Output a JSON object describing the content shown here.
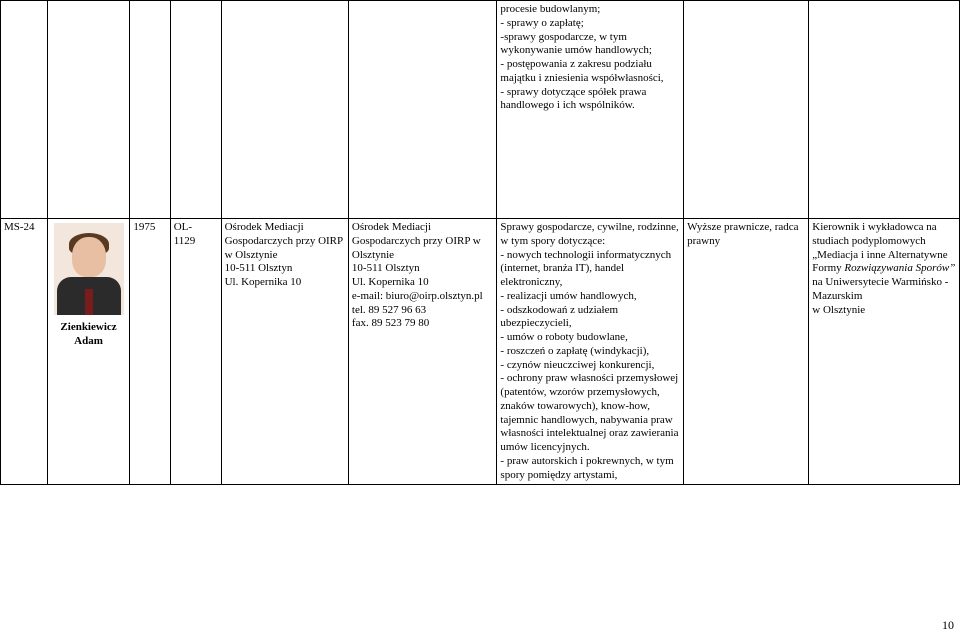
{
  "page_number": "10",
  "row_top": {
    "desc": "procesie budowlanym;\n- sprawy o zapłatę;\n-sprawy gospodarcze, w tym wykonywanie umów handlowych;\n- postępowania z zakresu podziału majątku i zniesienia współwłasności,\n- sprawy dotyczące spółek prawa handlowego i ich wspólników."
  },
  "row_main": {
    "id": "MS-24",
    "surname": "Zienkiewicz",
    "firstname": "Adam",
    "year": "1975",
    "num_prefix": "OL-",
    "num": "1129",
    "org": "Ośrodek Mediacji Gospodarczych przy OIRP w Olsztynie\n10-511 Olsztyn\nUl. Kopernika 10",
    "addr": "Ośrodek Mediacji Gospodarczych przy OIRP w Olsztynie\n10-511 Olsztyn\nUl. Kopernika 10\ne-mail: biuro@oirp.olsztyn.pl\ntel. 89 527 96 63\nfax. 89 523 79 80",
    "desc": "Sprawy gospodarcze, cywilne, rodzinne, w tym spory dotyczące:\n- nowych technologii informatycznych (internet, branża IT), handel elektroniczny,\n- realizacji umów handlowych,\n- odszkodowań z udziałem ubezpieczycieli,\n- umów o roboty budowlane,\n- roszczeń o zapłatę (windykacji),\n- czynów nieuczciwej konkurencji,\n- ochrony praw własności przemysłowej (patentów, wzorów przemysłowych, znaków towarowych), know-how, tajemnic handlowych, nabywania praw własności intelektualnej oraz zawierania umów licencyjnych.\n- praw autorskich i pokrewnych, w tym spory pomiędzy artystami,",
    "qual": "Wyższe prawnicze, radca prawny",
    "note_line1": "Kierownik i wykładowca na studiach podyplomowych",
    "note_quote": "„Mediacja i inne Alternatywne Formy ",
    "note_italic": "Rozwiązywania Sporów”",
    "note_tail": " na Uniwersytecie Warmińsko - Mazurskim\nw Olsztynie"
  },
  "colors": {
    "border": "#000000",
    "bg": "#ffffff",
    "photo_bg": "#f2e6dd"
  }
}
